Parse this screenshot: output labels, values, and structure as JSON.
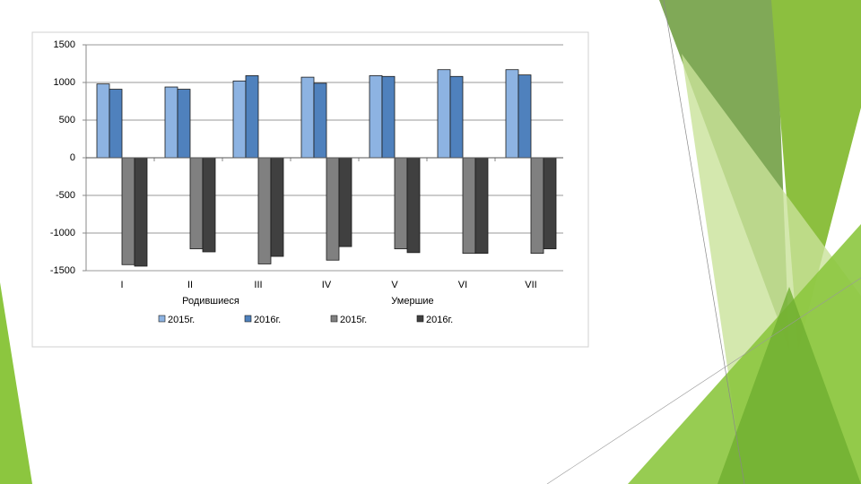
{
  "chart_data": {
    "type": "bar",
    "categories": [
      "I",
      "II",
      "III",
      "IV",
      "V",
      "VI",
      "VII"
    ],
    "annotations": [
      "Родившиеся",
      "Умершие"
    ],
    "series": [
      {
        "name": "2015г.",
        "color": "#8db3e2",
        "values": [
          980,
          940,
          1020,
          1070,
          1090,
          1170,
          1170
        ]
      },
      {
        "name": "2016г.",
        "color": "#4f81bd",
        "values": [
          910,
          910,
          1090,
          990,
          1080,
          1080,
          1100
        ]
      },
      {
        "name": "2015г.",
        "color": "#808080",
        "values": [
          -1420,
          -1210,
          -1410,
          -1360,
          -1210,
          -1270,
          -1270
        ]
      },
      {
        "name": "2016г.",
        "color": "#404040",
        "values": [
          -1440,
          -1250,
          -1310,
          -1180,
          -1260,
          -1270,
          -1210
        ]
      }
    ],
    "ylim": [
      -1500,
      1500
    ],
    "yticks": [
      -1500,
      -1000,
      -500,
      0,
      500,
      1000,
      1500
    ],
    "grid": true,
    "legend": "bottom"
  }
}
